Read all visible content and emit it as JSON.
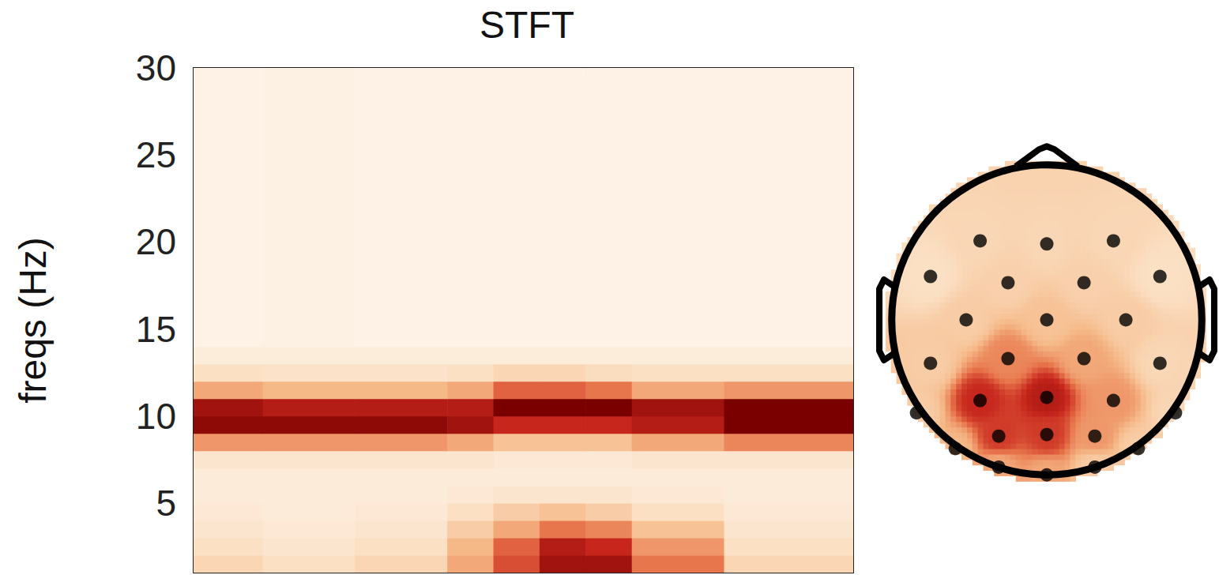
{
  "chart_data": {
    "type": "heatmap",
    "title": "STFT",
    "y_label": "freqs (Hz)",
    "tick_labels": "y",
    "xlim": [
      -0.25,
      6.9
    ],
    "xticks": [
      0,
      1,
      2,
      3,
      4,
      5,
      6
    ],
    "ylim": [
      1,
      30
    ],
    "yticks": [
      5,
      10,
      15,
      20,
      25,
      30
    ],
    "x_edges": [
      -0.25,
      0.5,
      1.5,
      2.5,
      3,
      3.5,
      4,
      4.5,
      5.5,
      6.9
    ],
    "y_edges": [
      1,
      2,
      3,
      4,
      5,
      6,
      7,
      8,
      9,
      10,
      11,
      12,
      13,
      14,
      30
    ],
    "power": [
      [
        0.25,
        0.2,
        0.25,
        0.45,
        0.7,
        0.9,
        0.9,
        0.6,
        0.25
      ],
      [
        0.2,
        0.15,
        0.2,
        0.4,
        0.65,
        0.85,
        0.8,
        0.5,
        0.2
      ],
      [
        0.15,
        0.12,
        0.15,
        0.3,
        0.45,
        0.6,
        0.55,
        0.35,
        0.15
      ],
      [
        0.12,
        0.1,
        0.12,
        0.2,
        0.3,
        0.35,
        0.3,
        0.2,
        0.12
      ],
      [
        0.1,
        0.1,
        0.1,
        0.12,
        0.15,
        0.15,
        0.15,
        0.12,
        0.1
      ],
      [
        0.1,
        0.1,
        0.1,
        0.1,
        0.1,
        0.1,
        0.1,
        0.1,
        0.1
      ],
      [
        0.15,
        0.15,
        0.15,
        0.15,
        0.12,
        0.12,
        0.12,
        0.15,
        0.15
      ],
      [
        0.5,
        0.5,
        0.5,
        0.45,
        0.35,
        0.35,
        0.35,
        0.45,
        0.55
      ],
      [
        0.95,
        0.95,
        0.95,
        0.9,
        0.8,
        0.8,
        0.8,
        0.85,
        1.0
      ],
      [
        0.9,
        0.85,
        0.85,
        0.85,
        1.0,
        1.0,
        1.0,
        0.9,
        1.0
      ],
      [
        0.45,
        0.4,
        0.4,
        0.45,
        0.65,
        0.65,
        0.6,
        0.45,
        0.5
      ],
      [
        0.2,
        0.18,
        0.18,
        0.2,
        0.25,
        0.25,
        0.22,
        0.2,
        0.2
      ],
      [
        0.08,
        0.08,
        0.08,
        0.08,
        0.08,
        0.08,
        0.08,
        0.08,
        0.08
      ],
      [
        0.03,
        0.04,
        0.03,
        0.03,
        0.03,
        0.03,
        0.03,
        0.03,
        0.03
      ]
    ],
    "clim": [
      0,
      1
    ],
    "topomap": {
      "electrodes": [
        [
          -0.43,
          0.51
        ],
        [
          0,
          0.49
        ],
        [
          0.43,
          0.51
        ],
        [
          -0.75,
          0.28
        ],
        [
          -0.25,
          0.24
        ],
        [
          0.24,
          0.24
        ],
        [
          0.73,
          0.28
        ],
        [
          -0.52,
          0
        ],
        [
          0,
          0
        ],
        [
          0.51,
          0
        ],
        [
          -0.75,
          -0.28
        ],
        [
          -0.25,
          -0.25
        ],
        [
          0.24,
          -0.25
        ],
        [
          0.73,
          -0.28
        ],
        [
          -0.43,
          -0.52
        ],
        [
          0,
          -0.5
        ],
        [
          0.43,
          -0.52
        ],
        [
          -0.84,
          -0.6
        ],
        [
          0.83,
          -0.6
        ],
        [
          -0.31,
          -0.75
        ],
        [
          0,
          -0.74
        ],
        [
          0.31,
          -0.75
        ],
        [
          -0.59,
          -0.83
        ],
        [
          0.59,
          -0.83
        ],
        [
          -0.31,
          -0.95
        ],
        [
          0,
          -1.0
        ],
        [
          0.31,
          -0.95
        ]
      ],
      "values": [
        0.25,
        0.25,
        0.25,
        0.2,
        0.28,
        0.28,
        0.2,
        0.3,
        0.35,
        0.3,
        0.3,
        0.55,
        0.45,
        0.25,
        0.8,
        0.85,
        0.5,
        0.3,
        0.25,
        0.75,
        0.75,
        0.5,
        0.4,
        0.3,
        0.45,
        0.45,
        0.3
      ]
    }
  }
}
